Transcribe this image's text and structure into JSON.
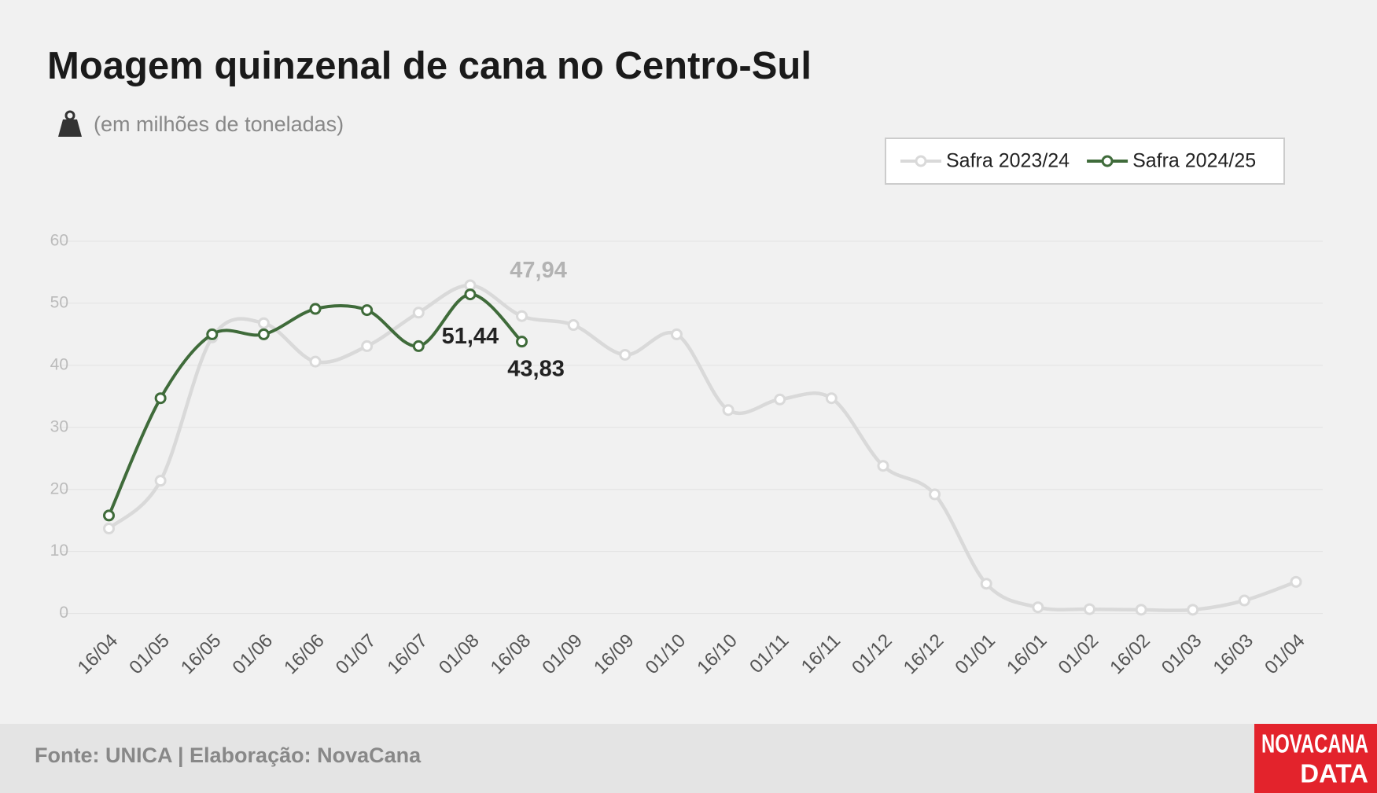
{
  "chart_data": {
    "type": "line",
    "title": "Moagem quinzenal de cana no Centro-Sul",
    "subtitle": "(em milhões de toneladas)",
    "source": "Fonte: UNICA | Elaboração: NovaCana",
    "logo": [
      "NOVACANA",
      "DATA"
    ],
    "categories": [
      "16/04",
      "01/05",
      "16/05",
      "01/06",
      "16/06",
      "01/07",
      "16/07",
      "01/08",
      "16/08",
      "01/09",
      "16/09",
      "01/10",
      "16/10",
      "01/11",
      "16/11",
      "01/12",
      "16/12",
      "01/01",
      "16/01",
      "01/02",
      "16/02",
      "01/03",
      "16/03",
      "01/04"
    ],
    "series": [
      {
        "name": "Safra 2023/24",
        "color": "#d9d9d9",
        "label_color": "#b3b3b3",
        "values": [
          13.7,
          21.4,
          44.5,
          46.8,
          40.6,
          43.1,
          48.5,
          52.9,
          47.94,
          46.5,
          41.7,
          45.0,
          32.8,
          34.5,
          34.7,
          23.8,
          19.2,
          4.8,
          1.0,
          0.7,
          0.6,
          0.6,
          2.1,
          5.1
        ],
        "value_labels": [
          null,
          null,
          null,
          null,
          null,
          null,
          null,
          null,
          "47,94",
          null,
          null,
          null,
          null,
          null,
          null,
          null,
          null,
          null,
          null,
          null,
          null,
          null,
          null,
          null
        ]
      },
      {
        "name": "Safra 2024/25",
        "color": "#3f6b3a",
        "label_color": "#222222",
        "values": [
          15.8,
          34.7,
          45.0,
          45.0,
          49.1,
          48.9,
          43.1,
          51.44,
          43.83,
          null,
          null,
          null,
          null,
          null,
          null,
          null,
          null,
          null,
          null,
          null,
          null,
          null,
          null,
          null
        ],
        "value_labels": [
          null,
          null,
          null,
          null,
          null,
          null,
          null,
          "51,44",
          "43,83",
          null,
          null,
          null,
          null,
          null,
          null,
          null,
          null,
          null,
          null,
          null,
          null,
          null,
          null,
          null
        ]
      }
    ],
    "ylim": [
      0,
      60
    ],
    "yticks": [
      0,
      10,
      20,
      30,
      40,
      50,
      60
    ],
    "grid": true,
    "legend": "top-right"
  }
}
